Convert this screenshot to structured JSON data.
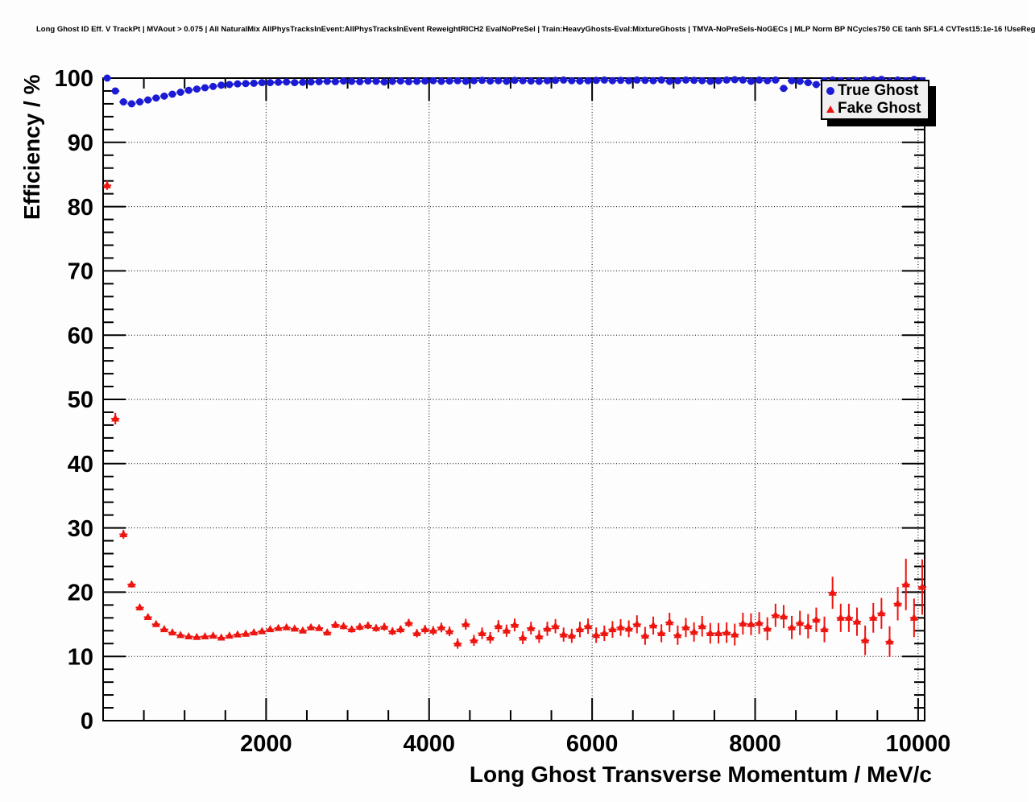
{
  "chart_data": {
    "type": "scatter",
    "title": "Long Ghost ID Eff. V TrackPt | MVAout > 0.075 | All NaturalMix AllPhysTracksInEvent:AllPhysTracksInEvent ReweightRICH2 EvalNoPreSel | Train:HeavyGhosts-Eval:MixtureGhosts | TMVA-NoPreSels-NoGECs | MLP Norm BP NCycles750 CE tanh SF1.4 CVTest15:1e-16 !UseReg",
    "xlabel": "Long Ghost Transverse Momentum / MeV/c",
    "ylabel": "Efficiency / %",
    "xlim": [
      0,
      10080
    ],
    "ylim": [
      0,
      100
    ],
    "x_major": [
      2000,
      4000,
      6000,
      8000,
      10000
    ],
    "x_minor_step": 500,
    "y_major": [
      0,
      10,
      20,
      30,
      40,
      50,
      60,
      70,
      80,
      90,
      100
    ],
    "y_minor_step": 2,
    "grid": "dotted-at-major-ticks",
    "bin_half_width": 50,
    "legend": {
      "position": "top-right",
      "entries": [
        {
          "label": "True Ghost",
          "marker": "circle",
          "color": "#1b1bd6"
        },
        {
          "label": "Fake Ghost",
          "marker": "triangle",
          "color": "#ee1510"
        }
      ]
    },
    "x": [
      50,
      150,
      250,
      350,
      450,
      550,
      650,
      750,
      850,
      950,
      1050,
      1150,
      1250,
      1350,
      1450,
      1550,
      1650,
      1750,
      1850,
      1950,
      2050,
      2150,
      2250,
      2350,
      2450,
      2550,
      2650,
      2750,
      2850,
      2950,
      3050,
      3150,
      3250,
      3350,
      3450,
      3550,
      3650,
      3750,
      3850,
      3950,
      4050,
      4150,
      4250,
      4350,
      4450,
      4550,
      4650,
      4750,
      4850,
      4950,
      5050,
      5150,
      5250,
      5350,
      5450,
      5550,
      5650,
      5750,
      5850,
      5950,
      6050,
      6150,
      6250,
      6350,
      6450,
      6550,
      6650,
      6750,
      6850,
      6950,
      7050,
      7150,
      7250,
      7350,
      7450,
      7550,
      7650,
      7750,
      7850,
      7950,
      8050,
      8150,
      8250,
      8350,
      8450,
      8550,
      8650,
      8750,
      8850,
      8950,
      9050,
      9150,
      9250,
      9350,
      9450,
      9550,
      9650,
      9750,
      9850,
      9950,
      10050
    ],
    "series": [
      {
        "name": "True Ghost",
        "marker": "circle",
        "color": "#1b1bd6",
        "y": [
          100,
          98,
          96.3,
          96,
          96.3,
          96.6,
          96.9,
          97.2,
          97.5,
          97.8,
          98.1,
          98.3,
          98.5,
          98.7,
          98.9,
          99,
          99.1,
          99.15,
          99.2,
          99.3,
          99.3,
          99.35,
          99.4,
          99.3,
          99.35,
          99.4,
          99.45,
          99.5,
          99.45,
          99.55,
          99.5,
          99.45,
          99.55,
          99.5,
          99.4,
          99.5,
          99.55,
          99.45,
          99.5,
          99.55,
          99.6,
          99.5,
          99.55,
          99.6,
          99.5,
          99.6,
          99.65,
          99.55,
          99.6,
          99.5,
          99.65,
          99.6,
          99.55,
          99.5,
          99.6,
          99.65,
          99.7,
          99.6,
          99.55,
          99.6,
          99.65,
          99.7,
          99.6,
          99.65,
          99.6,
          99.7,
          99.65,
          99.6,
          99.7,
          99.5,
          99.6,
          99.7,
          99.65,
          99.6,
          99.5,
          99.6,
          99.7,
          99.75,
          99.7,
          99.5,
          99.7,
          99.6,
          99.7,
          98.4,
          99.6,
          99.5,
          99.3,
          99,
          99.6,
          99.7,
          99.6,
          99.5,
          99.6,
          99.7,
          99.75,
          99.8,
          99.5,
          99.7,
          99.6,
          99.8,
          99.6
        ],
        "yerr": [
          0.05,
          0.3,
          0.25,
          0.25,
          0.2,
          0.2,
          0.2,
          0.2,
          0.15,
          0.15,
          0.15,
          0.15,
          0.15,
          0.1,
          0.1,
          0.1,
          0.1,
          0.1,
          0.1,
          0.1,
          0.1,
          0.1,
          0.1,
          0.1,
          0.1,
          0.1,
          0.1,
          0.1,
          0.1,
          0.1,
          0.1,
          0.1,
          0.1,
          0.1,
          0.1,
          0.1,
          0.1,
          0.1,
          0.1,
          0.1,
          0.1,
          0.1,
          0.1,
          0.1,
          0.1,
          0.1,
          0.1,
          0.15,
          0.15,
          0.15,
          0.15,
          0.15,
          0.15,
          0.15,
          0.15,
          0.15,
          0.15,
          0.15,
          0.15,
          0.15,
          0.15,
          0.15,
          0.2,
          0.2,
          0.2,
          0.2,
          0.2,
          0.2,
          0.2,
          0.25,
          0.25,
          0.25,
          0.25,
          0.25,
          0.3,
          0.3,
          0.3,
          0.3,
          0.3,
          0.35,
          0.3,
          0.35,
          0.3,
          0.5,
          0.35,
          0.4,
          0.45,
          0.5,
          0.4,
          0.3,
          0.4,
          0.45,
          0.4,
          0.35,
          0.3,
          0.25,
          0.5,
          0.4,
          0.45,
          0.3,
          0.45
        ]
      },
      {
        "name": "Fake Ghost",
        "marker": "triangle",
        "color": "#ee1510",
        "y": [
          83.3,
          47,
          29,
          21.2,
          17.6,
          16.1,
          15,
          14.2,
          13.7,
          13.3,
          13.1,
          13,
          13.1,
          13.2,
          12.9,
          13.2,
          13.4,
          13.5,
          13.7,
          13.9,
          14.2,
          14.4,
          14.5,
          14.3,
          14,
          14.5,
          14.4,
          13.7,
          14.9,
          14.7,
          14.2,
          14.6,
          14.8,
          14.4,
          14.6,
          13.9,
          14.2,
          15.2,
          13.6,
          14.2,
          14,
          14.5,
          13.9,
          12,
          15,
          12.5,
          13.6,
          12.9,
          14.7,
          14,
          14.9,
          12.9,
          14.4,
          13.1,
          14.3,
          14.7,
          13.4,
          13.2,
          14.2,
          14.7,
          13.3,
          13.6,
          14.2,
          14.5,
          14.3,
          15,
          13.2,
          14.8,
          13.6,
          15.3,
          13.3,
          14.5,
          13.8,
          14.7,
          13.6,
          13.6,
          13.7,
          13.4,
          15.1,
          15,
          15.2,
          14.3,
          16.4,
          16.2,
          14.5,
          15.2,
          14.7,
          15.7,
          14.2,
          19.9,
          16,
          16,
          15.4,
          12.5,
          16,
          16.7,
          12.3,
          18.2,
          21.2,
          16,
          20.8
        ],
        "yerr": [
          0.7,
          0.9,
          0.7,
          0.5,
          0.45,
          0.4,
          0.35,
          0.3,
          0.3,
          0.3,
          0.3,
          0.3,
          0.3,
          0.3,
          0.3,
          0.3,
          0.3,
          0.3,
          0.35,
          0.35,
          0.4,
          0.4,
          0.4,
          0.4,
          0.4,
          0.45,
          0.45,
          0.45,
          0.5,
          0.5,
          0.5,
          0.55,
          0.55,
          0.55,
          0.6,
          0.6,
          0.6,
          0.65,
          0.65,
          0.7,
          0.7,
          0.75,
          0.75,
          0.8,
          0.85,
          0.85,
          0.9,
          0.9,
          0.95,
          0.95,
          1,
          1,
          1,
          1,
          1.1,
          1.1,
          1.1,
          1.1,
          1.2,
          1.2,
          1.2,
          1.2,
          1.3,
          1.3,
          1.3,
          1.4,
          1.4,
          1.4,
          1.4,
          1.5,
          1.5,
          1.5,
          1.5,
          1.6,
          1.6,
          1.6,
          1.6,
          1.7,
          1.7,
          1.7,
          1.7,
          1.8,
          1.8,
          1.8,
          1.8,
          1.9,
          1.9,
          1.9,
          2,
          2.5,
          2.2,
          2.2,
          2.2,
          2.3,
          2.3,
          2.4,
          2.4,
          2.6,
          4,
          3,
          4.3
        ]
      }
    ]
  }
}
